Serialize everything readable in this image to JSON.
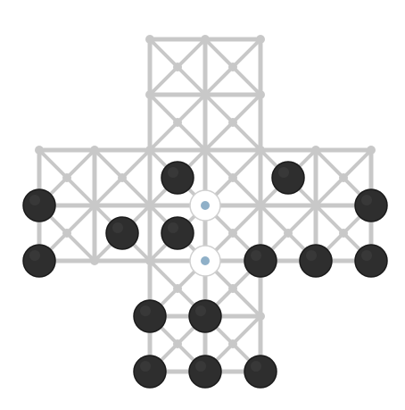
{
  "board": {
    "cols": 7,
    "rows": 7,
    "valid_points": [
      [
        2,
        0
      ],
      [
        3,
        0
      ],
      [
        4,
        0
      ],
      [
        2,
        1
      ],
      [
        3,
        1
      ],
      [
        4,
        1
      ],
      [
        0,
        2
      ],
      [
        1,
        2
      ],
      [
        2,
        2
      ],
      [
        3,
        2
      ],
      [
        4,
        2
      ],
      [
        5,
        2
      ],
      [
        6,
        2
      ],
      [
        0,
        3
      ],
      [
        1,
        3
      ],
      [
        2,
        3
      ],
      [
        3,
        3
      ],
      [
        4,
        3
      ],
      [
        5,
        3
      ],
      [
        6,
        3
      ],
      [
        0,
        4
      ],
      [
        1,
        4
      ],
      [
        2,
        4
      ],
      [
        3,
        4
      ],
      [
        4,
        4
      ],
      [
        5,
        4
      ],
      [
        6,
        4
      ],
      [
        2,
        5
      ],
      [
        3,
        5
      ],
      [
        4,
        5
      ],
      [
        2,
        6
      ],
      [
        3,
        6
      ],
      [
        4,
        6
      ]
    ],
    "line_color": "#c8c8c8"
  },
  "pieces": [
    {
      "col": 0,
      "row": 3,
      "color": "dark"
    },
    {
      "col": 0,
      "row": 4,
      "color": "dark"
    },
    {
      "col": 4,
      "row": 4,
      "color": "dark"
    },
    {
      "col": 5,
      "row": 4,
      "color": "dark"
    },
    {
      "col": 6,
      "row": 4,
      "color": "dark"
    },
    {
      "col": 6,
      "row": 3,
      "color": "dark"
    },
    {
      "col": 2,
      "row": 5,
      "color": "dark"
    },
    {
      "col": 3,
      "row": 5,
      "color": "dark"
    },
    {
      "col": 2,
      "row": 6,
      "color": "dark"
    },
    {
      "col": 3,
      "row": 6,
      "color": "dark"
    },
    {
      "col": 4,
      "row": 6,
      "color": "dark"
    }
  ],
  "free_pieces": [
    {
      "x": 2.5,
      "y": 2.5,
      "color": "dark"
    },
    {
      "x": 4.5,
      "y": 2.5,
      "color": "dark"
    },
    {
      "x": 1.5,
      "y": 3.5,
      "color": "dark"
    },
    {
      "x": 2.5,
      "y": 3.5,
      "color": "dark"
    }
  ],
  "targets": [
    {
      "col": 3,
      "row": 3
    },
    {
      "col": 3,
      "row": 4
    }
  ],
  "colors": {
    "dark_piece": "#2e2e2e",
    "target_dot": "#8fb0c8"
  }
}
